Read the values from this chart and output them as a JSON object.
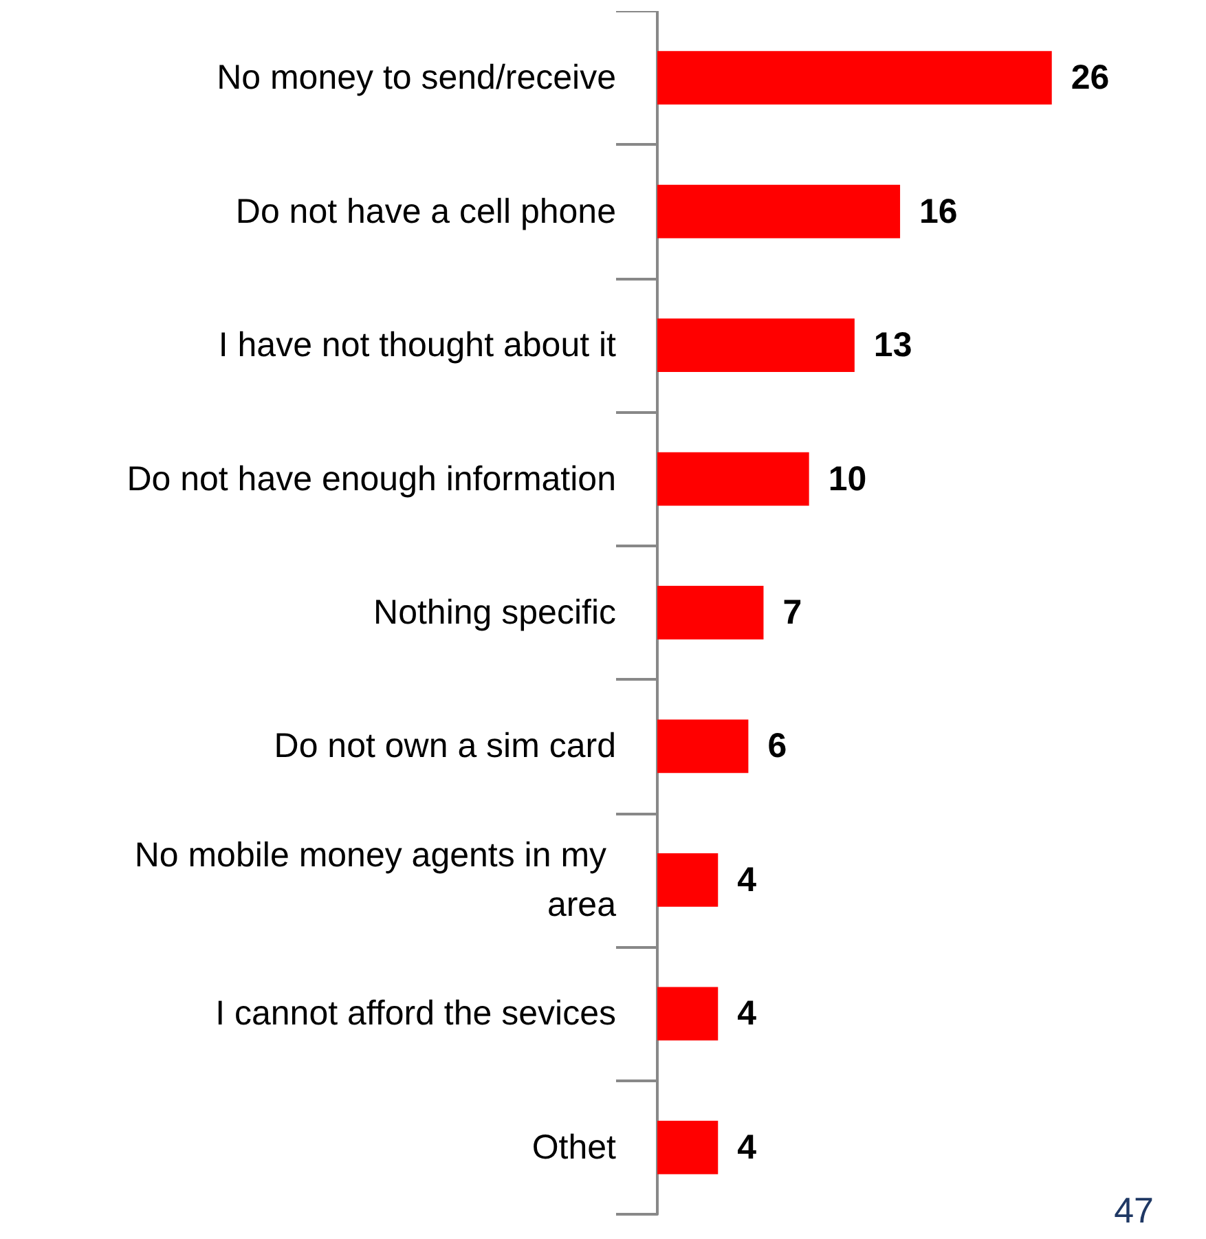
{
  "chart_data": {
    "type": "bar",
    "orientation": "horizontal",
    "categories": [
      "No money to send/receive",
      "Do not have a cell phone",
      "I have not thought about it",
      "Do not have enough information",
      "Nothing specific",
      "Do not own a sim card",
      "No mobile money agents in my area",
      "I cannot afford the sevices",
      "Othet"
    ],
    "values": [
      26,
      16,
      13,
      10,
      7,
      6,
      4,
      4,
      4
    ],
    "color": "#ff0000",
    "data_labels": true,
    "annotations": [
      "47"
    ]
  }
}
